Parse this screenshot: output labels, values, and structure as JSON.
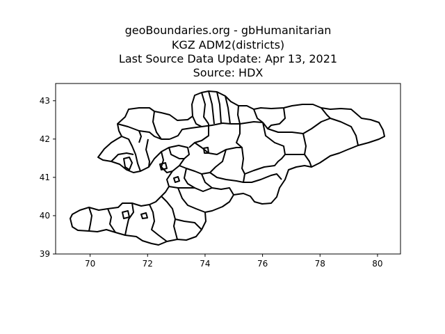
{
  "title": {
    "line1": "geoBoundaries.org - gbHumanitarian",
    "line2": "KGZ ADM2(districts)",
    "line3": "Last Source Data Update: Apr 13, 2021",
    "line4": "Source: HDX"
  },
  "chart_data": {
    "type": "map",
    "region": "Kyrgyzstan",
    "admin_level": "ADM2 (districts)",
    "xlim": [
      68.8,
      80.8
    ],
    "ylim": [
      39.0,
      43.45
    ],
    "xticks": [
      70,
      72,
      74,
      76,
      78,
      80
    ],
    "yticks": [
      39,
      40,
      41,
      42,
      43
    ],
    "xlabel": "",
    "ylabel": "",
    "grid": false
  }
}
